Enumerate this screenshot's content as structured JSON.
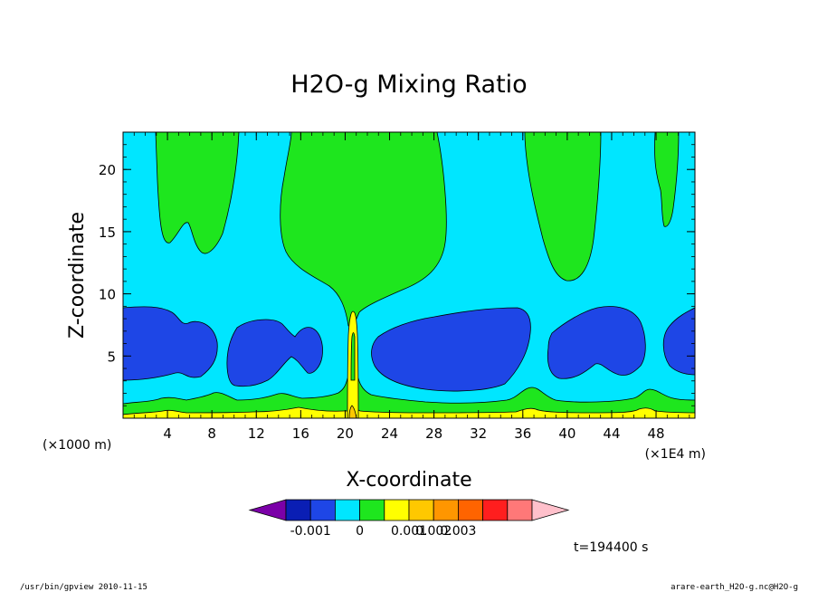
{
  "chart_data": {
    "type": "heatmap",
    "title": "H2O-g Mixing Ratio",
    "xlabel": "X-coordinate",
    "ylabel": "Z-coordinate",
    "x_scale_note": "(×1E4 m)",
    "y_scale_note": "(×1000 m)",
    "xlim": [
      0,
      51.5
    ],
    "ylim": [
      0,
      23
    ],
    "x_ticks": [
      4,
      8,
      12,
      16,
      20,
      24,
      28,
      32,
      36,
      40,
      44,
      48
    ],
    "y_ticks": [
      5,
      10,
      15,
      20
    ],
    "colorbar": {
      "colors": [
        "#7b00a8",
        "#0a1eb4",
        "#1e46e6",
        "#00e6ff",
        "#1ee61e",
        "#ffff00",
        "#ffc800",
        "#ff9600",
        "#ff6400",
        "#ff1e1e",
        "#ff7878",
        "#ffc0cb"
      ],
      "tick_labels": [
        "-0.001",
        "0",
        "0.001",
        "0.002",
        "0.003"
      ]
    },
    "time_label": "t=194400 s"
  },
  "footer": {
    "left": "/usr/bin/gpview   2010-11-15",
    "right": "arare-earth_H2O-g.nc@H2O-g"
  }
}
